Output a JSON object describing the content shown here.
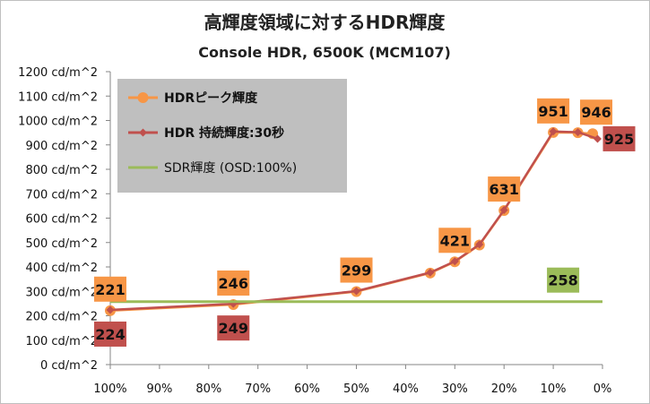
{
  "chart_data": {
    "type": "line",
    "title": "高輝度領域に対するHDR輝度",
    "subtitle": "Console HDR, 6500K (MCM107)",
    "xlabel": "",
    "ylabel": "",
    "xlim": [
      100,
      0
    ],
    "ylim": [
      0,
      1200
    ],
    "y_unit": " cd/m^2",
    "x_ticks": [
      100,
      90,
      80,
      70,
      60,
      50,
      40,
      30,
      20,
      10,
      0
    ],
    "x_tick_labels": [
      "100%",
      "90%",
      "80%",
      "70%",
      "60%",
      "50%",
      "40%",
      "30%",
      "20%",
      "10%",
      "0%"
    ],
    "y_ticks": [
      0,
      100,
      200,
      300,
      400,
      500,
      600,
      700,
      800,
      900,
      1000,
      1100,
      1200
    ],
    "y_tick_labels": [
      "0 cd/m^2",
      "100 cd/m^2",
      "200 cd/m^2",
      "300 cd/m^2",
      "400 cd/m^2",
      "500 cd/m^2",
      "600 cd/m^2",
      "700 cd/m^2",
      "800 cd/m^2",
      "900 cd/m^2",
      "1000 cd/m^2",
      "1100 cd/m^2",
      "1200 cd/m^2"
    ],
    "grid": false,
    "legend_position": "top-left",
    "series": [
      {
        "name": "HDRピーク輝度",
        "color": "#f79646",
        "marker": "circle",
        "x": [
          100,
          75,
          50,
          35,
          30,
          25,
          20,
          10,
          5,
          2
        ],
        "y": [
          221,
          246,
          299,
          375,
          421,
          490,
          631,
          951,
          950,
          946
        ]
      },
      {
        "name": "HDR 持続輝度:30秒",
        "color": "#c0504d",
        "marker": "diamond",
        "x": [
          100,
          75,
          50,
          35,
          30,
          25,
          20,
          10,
          5,
          1
        ],
        "y": [
          224,
          249,
          301,
          377,
          423,
          492,
          633,
          955,
          952,
          925
        ]
      },
      {
        "name": "SDR輝度 (OSD:100%)",
        "color": "#9bbb59",
        "marker": "none",
        "x": [
          100,
          0
        ],
        "y": [
          258,
          258
        ]
      }
    ],
    "annotations": [
      {
        "text": "221",
        "series": 0,
        "at_x": 100,
        "fill": "#f79646",
        "place": "above"
      },
      {
        "text": "246",
        "series": 0,
        "at_x": 75,
        "fill": "#f79646",
        "place": "above"
      },
      {
        "text": "299",
        "series": 0,
        "at_x": 50,
        "fill": "#f79646",
        "place": "above"
      },
      {
        "text": "421",
        "series": 0,
        "at_x": 30,
        "fill": "#f79646",
        "place": "above"
      },
      {
        "text": "631",
        "series": 0,
        "at_x": 20,
        "fill": "#f79646",
        "place": "above"
      },
      {
        "text": "951",
        "series": 0,
        "at_x": 10,
        "fill": "#f79646",
        "place": "above"
      },
      {
        "text": "946",
        "series": 0,
        "at_x": 2,
        "fill": "#f79646",
        "place": "above-right"
      },
      {
        "text": "224",
        "series": 1,
        "at_x": 100,
        "fill": "#c0504d",
        "place": "below"
      },
      {
        "text": "249",
        "series": 1,
        "at_x": 75,
        "fill": "#c0504d",
        "place": "below"
      },
      {
        "text": "925",
        "series": 1,
        "at_x": 1,
        "fill": "#c0504d",
        "place": "right"
      },
      {
        "text": "258",
        "series": 2,
        "at_x": 8,
        "fill": "#9bbb59",
        "place": "above"
      }
    ]
  }
}
